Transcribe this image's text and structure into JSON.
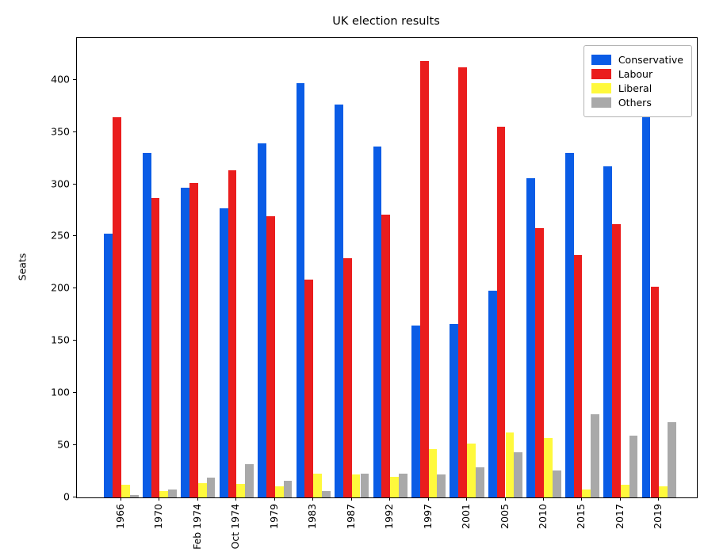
{
  "chart_data": {
    "type": "bar",
    "title": "UK election results",
    "ylabel": "Seats",
    "xlabel": "",
    "grid": false,
    "legend_position": "upper right",
    "ylim": [
      0,
      440
    ],
    "yticks": [
      0,
      50,
      100,
      150,
      200,
      250,
      300,
      350,
      400
    ],
    "categories": [
      "1966",
      "1970",
      "Feb 1974",
      "Oct 1974",
      "1979",
      "1983",
      "1987",
      "1992",
      "1997",
      "2001",
      "2005",
      "2010",
      "2015",
      "2017",
      "2019"
    ],
    "series": [
      {
        "name": "Conservative",
        "color": "#0a5ce6",
        "values": [
          253,
          330,
          297,
          277,
          339,
          397,
          376,
          336,
          165,
          166,
          198,
          306,
          330,
          317,
          365
        ]
      },
      {
        "name": "Labour",
        "color": "#ea1d1d",
        "values": [
          364,
          287,
          301,
          313,
          269,
          209,
          229,
          271,
          418,
          412,
          355,
          258,
          232,
          262,
          202
        ]
      },
      {
        "name": "Liberal",
        "color": "#fff93c",
        "values": [
          12,
          6,
          14,
          13,
          11,
          23,
          22,
          20,
          46,
          52,
          62,
          57,
          8,
          12,
          11
        ]
      },
      {
        "name": "Others",
        "color": "#a9a9a9",
        "values": [
          2,
          8,
          19,
          32,
          16,
          6,
          23,
          23,
          22,
          29,
          43,
          26,
          80,
          59,
          72
        ]
      }
    ]
  }
}
